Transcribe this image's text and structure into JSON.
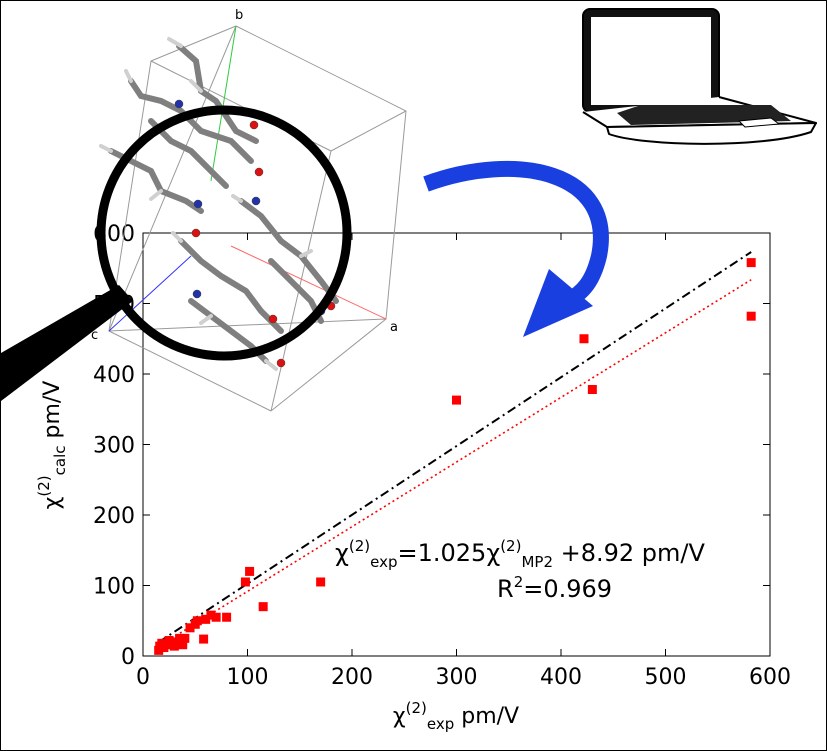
{
  "chart_data": {
    "type": "scatter",
    "xlabel": {
      "base": "χ",
      "sup": "(2)",
      "sub": "exp",
      "unit": " pm/V"
    },
    "ylabel": {
      "base": "χ",
      "sup": "(2)",
      "sub": "calc",
      "unit": " pm/V"
    },
    "xlim": [
      0,
      600
    ],
    "ylim": [
      0,
      600
    ],
    "x_ticks": [
      0,
      100,
      200,
      300,
      400,
      500,
      600
    ],
    "y_ticks": [
      0,
      100,
      200,
      300,
      400,
      500,
      600
    ],
    "grid": false,
    "series": [
      {
        "color": "#ff0000",
        "marker": "square",
        "points": [
          [
            15,
            8
          ],
          [
            16,
            14
          ],
          [
            18,
            18
          ],
          [
            20,
            12
          ],
          [
            22,
            16
          ],
          [
            25,
            22
          ],
          [
            28,
            20
          ],
          [
            30,
            14
          ],
          [
            35,
            25
          ],
          [
            38,
            16
          ],
          [
            40,
            25
          ],
          [
            45,
            40
          ],
          [
            50,
            45
          ],
          [
            52,
            50
          ],
          [
            58,
            24
          ],
          [
            60,
            52
          ],
          [
            65,
            58
          ],
          [
            70,
            55
          ],
          [
            80,
            55
          ],
          [
            98,
            105
          ],
          [
            102,
            120
          ],
          [
            115,
            70
          ],
          [
            170,
            105
          ],
          [
            300,
            363
          ],
          [
            422,
            450
          ],
          [
            430,
            378
          ],
          [
            582,
            558
          ],
          [
            582,
            482
          ]
        ]
      }
    ],
    "fit_lines": [
      {
        "style": "dashdot",
        "color": "#000000",
        "slope": 0.976,
        "intercept": 5
      },
      {
        "style": "dotted",
        "color": "#ff0000",
        "slope": 0.917,
        "intercept": 0
      }
    ],
    "annotations": {
      "equation": {
        "lhs_base": "χ",
        "lhs_sup": "(2)",
        "lhs_sub": "exp",
        "mid": "=1.025",
        "rhs_base": "χ",
        "rhs_sup": "(2)",
        "rhs_sub": "MP2",
        "tail": " +8.92 pm/V"
      },
      "r2": {
        "base": "R",
        "sup": "2",
        "tail": "=0.969"
      }
    }
  },
  "crystal_axes": {
    "a": "a",
    "b": "b",
    "c": "c"
  },
  "colors": {
    "arrow": "#1a3fe0",
    "markers": "#ff0000",
    "atom_n": "#2233aa",
    "atom_o": "#dd1111",
    "atom_c": "#8a8a8a",
    "atom_h": "#cfcfcf"
  },
  "icons": {
    "laptop": "laptop-icon",
    "magnifier": "magnifying-glass-icon",
    "arrow": "curved-arrow-icon"
  }
}
